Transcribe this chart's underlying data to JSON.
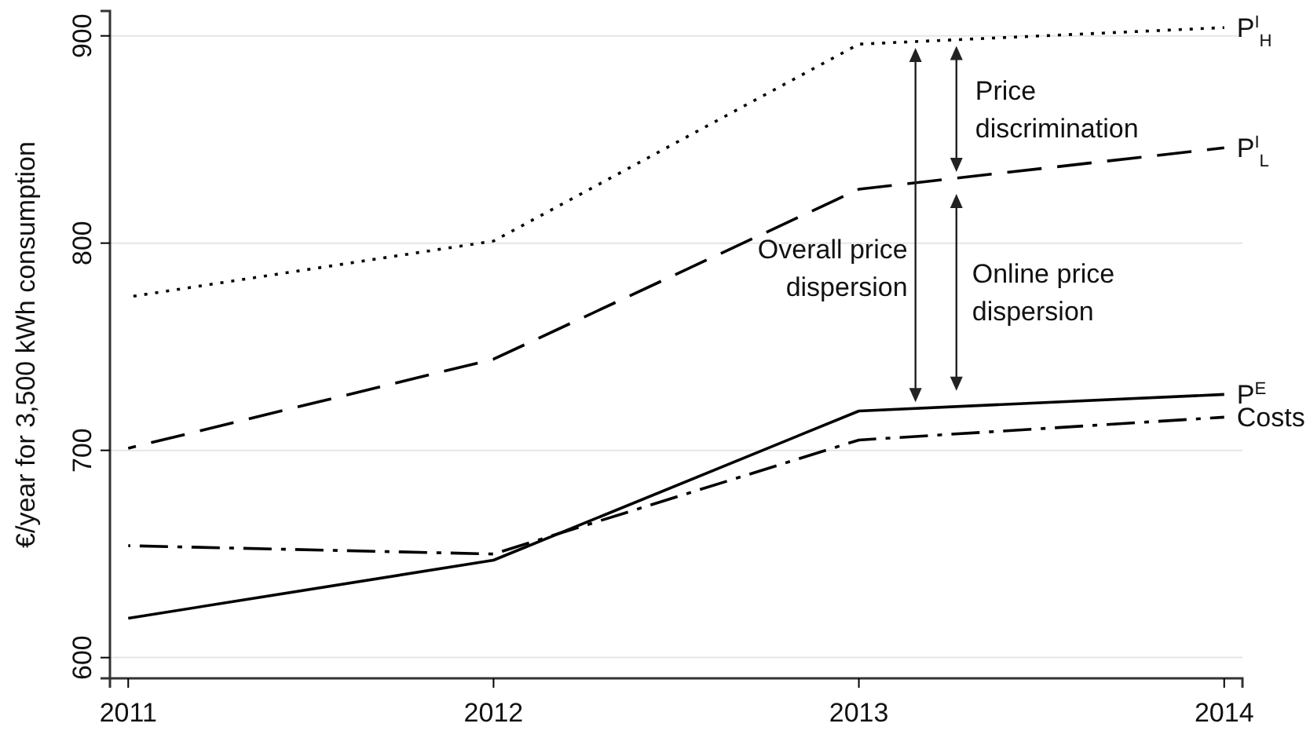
{
  "chart_data": {
    "type": "line",
    "ylabel": "€/year for 3,500 kWh consumption",
    "x": [
      2011,
      2012,
      2013,
      2014
    ],
    "xlim": [
      2010.95,
      2014.05
    ],
    "xticks": [
      2011,
      2012,
      2013,
      2014
    ],
    "ylim": [
      590,
      912
    ],
    "yticks": [
      600,
      700,
      800,
      900
    ],
    "grid": "y",
    "legend": false,
    "marker": "none",
    "series": [
      {
        "name": "P$^{I}$$_{H}$",
        "color": "#000000",
        "line_style": "dotted",
        "values": [
          774,
          801,
          896,
          904
        ]
      },
      {
        "name": "P$^{I}$$_{L}$",
        "color": "#000000",
        "line_style": "dashed",
        "values": [
          701,
          744,
          826,
          846
        ]
      },
      {
        "name": "P$^{E}$",
        "color": "#000000",
        "line_style": "solid",
        "values": [
          619,
          647,
          719,
          727
        ]
      },
      {
        "name": "Costs",
        "color": "#000000",
        "line_style": "dashdot",
        "values": [
          654,
          650,
          705,
          716
        ]
      }
    ],
    "annotations": [
      "Price discrimination",
      "Overall price dispersion",
      "Online price dispersion"
    ]
  }
}
